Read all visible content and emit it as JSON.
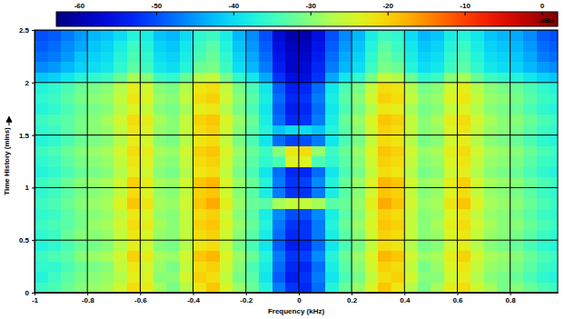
{
  "chart_data": {
    "type": "heatmap",
    "x_label": "Frequency (kHz)",
    "y_label": "Time History (mins)",
    "xlim": [
      -1,
      0.98
    ],
    "ylim": [
      0,
      2.5
    ],
    "xticks": [
      -1,
      -0.8,
      -0.6,
      -0.4,
      -0.2,
      0,
      0.2,
      0.4,
      0.6,
      0.8
    ],
    "yticks": [
      0,
      0.5,
      1,
      1.5,
      2,
      2.5
    ],
    "grid": true,
    "x": [
      -0.975,
      -0.925,
      -0.875,
      -0.825,
      -0.775,
      -0.725,
      -0.675,
      -0.625,
      -0.575,
      -0.525,
      -0.475,
      -0.425,
      -0.375,
      -0.325,
      -0.275,
      -0.225,
      -0.175,
      -0.125,
      -0.075,
      -0.025,
      0.025,
      0.075,
      0.125,
      0.175,
      0.225,
      0.275,
      0.325,
      0.375,
      0.425,
      0.475,
      0.525,
      0.575,
      0.625,
      0.675,
      0.725,
      0.775,
      0.825,
      0.875,
      0.925,
      0.975
    ],
    "y": [
      0.05,
      0.15,
      0.25,
      0.35,
      0.45,
      0.55,
      0.65,
      0.75,
      0.85,
      0.95,
      1.05,
      1.15,
      1.25,
      1.35,
      1.45,
      1.55,
      1.65,
      1.75,
      1.85,
      1.95,
      2.05,
      2.15,
      2.25,
      2.35,
      2.45
    ],
    "cells": [
      [
        -35,
        -34,
        -32,
        -30,
        -29,
        -28,
        -25,
        -21,
        -23,
        -28,
        -31,
        -27,
        -22,
        -19,
        -24,
        -29,
        -32,
        -37,
        -47,
        -52,
        -53,
        -48,
        -37,
        -32,
        -29,
        -24,
        -19,
        -22,
        -27,
        -31,
        -28,
        -23,
        -21,
        -25,
        -28,
        -31,
        -30,
        -32,
        -34,
        -35
      ],
      [
        -37,
        -35,
        -33,
        -31,
        -30,
        -29,
        -27,
        -23,
        -24,
        -30,
        -30,
        -25,
        -20,
        -21,
        -26,
        -31,
        -33,
        -39,
        -49,
        -54,
        -52,
        -47,
        -39,
        -34,
        -31,
        -26,
        -21,
        -20,
        -25,
        -30,
        -30,
        -25,
        -23,
        -27,
        -30,
        -31,
        -32,
        -34,
        -36,
        -37
      ],
      [
        -36,
        -36,
        -34,
        -32,
        -31,
        -30,
        -26,
        -22,
        -25,
        -29,
        -31,
        -26,
        -21,
        -20,
        -25,
        -30,
        -34,
        -38,
        -48,
        -53,
        -53,
        -48,
        -38,
        -33,
        -30,
        -25,
        -20,
        -21,
        -26,
        -31,
        -29,
        -24,
        -22,
        -26,
        -29,
        -30,
        -31,
        -33,
        -35,
        -36
      ],
      [
        -35,
        -34,
        -33,
        -30,
        -29,
        -28,
        -25,
        -20,
        -23,
        -28,
        -29,
        -25,
        -19,
        -18,
        -24,
        -29,
        -32,
        -37,
        -47,
        -52,
        -51,
        -46,
        -37,
        -32,
        -29,
        -24,
        -18,
        -19,
        -25,
        -29,
        -28,
        -23,
        -20,
        -25,
        -28,
        -29,
        -30,
        -32,
        -34,
        -35
      ],
      [
        -37,
        -36,
        -34,
        -32,
        -31,
        -30,
        -27,
        -23,
        -25,
        -30,
        -31,
        -27,
        -22,
        -21,
        -26,
        -31,
        -34,
        -39,
        -49,
        -54,
        -53,
        -48,
        -39,
        -34,
        -31,
        -26,
        -21,
        -22,
        -27,
        -31,
        -30,
        -25,
        -23,
        -27,
        -30,
        -31,
        -32,
        -34,
        -36,
        -37
      ],
      [
        -36,
        -35,
        -32,
        -30,
        -30,
        -29,
        -26,
        -22,
        -24,
        -29,
        -30,
        -26,
        -21,
        -20,
        -25,
        -30,
        -33,
        -38,
        -48,
        -53,
        -52,
        -47,
        -38,
        -33,
        -30,
        -25,
        -20,
        -21,
        -26,
        -30,
        -29,
        -24,
        -22,
        -26,
        -29,
        -30,
        -31,
        -33,
        -35,
        -36
      ],
      [
        -35,
        -34,
        -33,
        -31,
        -29,
        -28,
        -25,
        -21,
        -23,
        -28,
        -30,
        -26,
        -20,
        -19,
        -24,
        -29,
        -32,
        -37,
        -47,
        -52,
        -52,
        -47,
        -37,
        -32,
        -29,
        -24,
        -19,
        -20,
        -26,
        -30,
        -28,
        -23,
        -21,
        -25,
        -28,
        -30,
        -30,
        -32,
        -34,
        -35
      ],
      [
        -36,
        -35,
        -33,
        -31,
        -30,
        -29,
        -26,
        -22,
        -24,
        -29,
        -30,
        -26,
        -21,
        -20,
        -25,
        -30,
        -33,
        -38,
        -46,
        -50,
        -50,
        -46,
        -38,
        -33,
        -30,
        -25,
        -20,
        -21,
        -26,
        -30,
        -29,
        -24,
        -22,
        -26,
        -29,
        -30,
        -31,
        -33,
        -35,
        -36
      ],
      [
        -35,
        -34,
        -32,
        -30,
        -29,
        -28,
        -24,
        -19,
        -22,
        -28,
        -29,
        -25,
        -19,
        -17,
        -23,
        -29,
        -32,
        -33,
        -28,
        -26,
        -26,
        -28,
        -33,
        -32,
        -29,
        -23,
        -17,
        -19,
        -25,
        -29,
        -28,
        -22,
        -19,
        -24,
        -28,
        -29,
        -30,
        -32,
        -34,
        -35
      ],
      [
        -36,
        -35,
        -33,
        -31,
        -30,
        -29,
        -26,
        -21,
        -24,
        -29,
        -30,
        -26,
        -20,
        -19,
        -25,
        -30,
        -33,
        -38,
        -47,
        -52,
        -52,
        -47,
        -38,
        -33,
        -30,
        -25,
        -19,
        -20,
        -26,
        -30,
        -29,
        -24,
        -21,
        -26,
        -29,
        -30,
        -31,
        -33,
        -35,
        -36
      ],
      [
        -35,
        -34,
        -32,
        -30,
        -29,
        -28,
        -25,
        -20,
        -23,
        -28,
        -29,
        -25,
        -19,
        -18,
        -24,
        -29,
        -32,
        -37,
        -47,
        -52,
        -51,
        -46,
        -37,
        -32,
        -29,
        -24,
        -18,
        -19,
        -25,
        -29,
        -28,
        -23,
        -20,
        -25,
        -28,
        -29,
        -30,
        -32,
        -34,
        -35
      ],
      [
        -37,
        -36,
        -34,
        -32,
        -31,
        -30,
        -27,
        -23,
        -25,
        -30,
        -31,
        -27,
        -22,
        -21,
        -26,
        -31,
        -34,
        -39,
        -48,
        -53,
        -53,
        -48,
        -39,
        -34,
        -31,
        -26,
        -21,
        -22,
        -27,
        -31,
        -30,
        -25,
        -23,
        -27,
        -30,
        -31,
        -32,
        -34,
        -36,
        -37
      ],
      [
        -36,
        -35,
        -33,
        -31,
        -30,
        -29,
        -26,
        -22,
        -24,
        -29,
        -30,
        -26,
        -21,
        -20,
        -25,
        -30,
        -33,
        -36,
        -34,
        -24,
        -24,
        -34,
        -36,
        -33,
        -30,
        -25,
        -20,
        -21,
        -26,
        -30,
        -29,
        -24,
        -22,
        -26,
        -29,
        -30,
        -31,
        -33,
        -35,
        -36
      ],
      [
        -35,
        -34,
        -32,
        -30,
        -29,
        -28,
        -25,
        -21,
        -23,
        -28,
        -29,
        -25,
        -20,
        -19,
        -24,
        -29,
        -32,
        -35,
        -30,
        -22,
        -21,
        -29,
        -35,
        -32,
        -29,
        -24,
        -19,
        -20,
        -25,
        -29,
        -28,
        -23,
        -21,
        -25,
        -28,
        -29,
        -30,
        -32,
        -34,
        -35
      ],
      [
        -37,
        -36,
        -34,
        -32,
        -31,
        -30,
        -27,
        -23,
        -25,
        -30,
        -31,
        -27,
        -22,
        -21,
        -26,
        -31,
        -34,
        -39,
        -48,
        -51,
        -50,
        -47,
        -39,
        -34,
        -31,
        -26,
        -21,
        -22,
        -27,
        -31,
        -30,
        -25,
        -23,
        -27,
        -30,
        -31,
        -32,
        -34,
        -36,
        -37
      ],
      [
        -36,
        -35,
        -33,
        -31,
        -30,
        -29,
        -26,
        -22,
        -24,
        -29,
        -30,
        -26,
        -21,
        -20,
        -25,
        -30,
        -33,
        -37,
        -42,
        -40,
        -40,
        -42,
        -37,
        -33,
        -30,
        -25,
        -20,
        -21,
        -26,
        -30,
        -29,
        -24,
        -22,
        -26,
        -29,
        -30,
        -31,
        -33,
        -35,
        -36
      ],
      [
        -35,
        -34,
        -33,
        -31,
        -30,
        -28,
        -25,
        -21,
        -23,
        -28,
        -30,
        -26,
        -20,
        -19,
        -24,
        -29,
        -32,
        -38,
        -48,
        -53,
        -52,
        -47,
        -38,
        -32,
        -29,
        -24,
        -19,
        -20,
        -26,
        -30,
        -28,
        -23,
        -21,
        -25,
        -28,
        -30,
        -30,
        -32,
        -34,
        -35
      ],
      [
        -37,
        -36,
        -34,
        -32,
        -31,
        -30,
        -27,
        -24,
        -26,
        -30,
        -31,
        -28,
        -23,
        -22,
        -27,
        -31,
        -34,
        -39,
        -49,
        -54,
        -53,
        -48,
        -39,
        -34,
        -31,
        -27,
        -22,
        -23,
        -28,
        -31,
        -30,
        -26,
        -24,
        -27,
        -30,
        -31,
        -32,
        -34,
        -36,
        -37
      ],
      [
        -36,
        -35,
        -33,
        -31,
        -30,
        -29,
        -26,
        -22,
        -24,
        -29,
        -30,
        -26,
        -21,
        -20,
        -25,
        -30,
        -33,
        -38,
        -48,
        -53,
        -52,
        -47,
        -38,
        -33,
        -30,
        -25,
        -20,
        -21,
        -26,
        -30,
        -29,
        -24,
        -22,
        -26,
        -29,
        -30,
        -31,
        -33,
        -35,
        -36
      ],
      [
        -37,
        -36,
        -34,
        -32,
        -31,
        -30,
        -27,
        -23,
        -25,
        -30,
        -31,
        -27,
        -22,
        -21,
        -26,
        -31,
        -34,
        -39,
        -49,
        -54,
        -53,
        -48,
        -39,
        -34,
        -31,
        -26,
        -21,
        -22,
        -27,
        -31,
        -30,
        -25,
        -23,
        -27,
        -30,
        -31,
        -32,
        -34,
        -36,
        -37
      ],
      [
        -42,
        -41,
        -39,
        -37,
        -36,
        -35,
        -32,
        -28,
        -30,
        -35,
        -36,
        -32,
        -27,
        -26,
        -31,
        -36,
        -39,
        -44,
        -52,
        -56,
        -56,
        -52,
        -44,
        -39,
        -36,
        -31,
        -26,
        -27,
        -32,
        -36,
        -35,
        -30,
        -28,
        -32,
        -35,
        -36,
        -37,
        -39,
        -41,
        -42
      ],
      [
        -46,
        -45,
        -43,
        -41,
        -40,
        -39,
        -36,
        -33,
        -35,
        -39,
        -40,
        -37,
        -32,
        -31,
        -35,
        -40,
        -43,
        -47,
        -54,
        -58,
        -57,
        -53,
        -47,
        -43,
        -40,
        -35,
        -31,
        -32,
        -37,
        -40,
        -39,
        -35,
        -33,
        -36,
        -39,
        -40,
        -41,
        -43,
        -45,
        -46
      ],
      [
        -48,
        -47,
        -45,
        -42,
        -41,
        -40,
        -37,
        -34,
        -36,
        -40,
        -41,
        -38,
        -34,
        -32,
        -36,
        -41,
        -44,
        -48,
        -55,
        -58,
        -58,
        -54,
        -48,
        -44,
        -41,
        -36,
        -32,
        -34,
        -38,
        -41,
        -40,
        -36,
        -34,
        -37,
        -40,
        -41,
        -42,
        -44,
        -47,
        -48
      ],
      [
        -49,
        -48,
        -46,
        -44,
        -42,
        -41,
        -38,
        -35,
        -37,
        -41,
        -42,
        -39,
        -35,
        -33,
        -37,
        -42,
        -45,
        -49,
        -56,
        -59,
        -59,
        -55,
        -49,
        -45,
        -42,
        -37,
        -33,
        -35,
        -39,
        -42,
        -41,
        -37,
        -35,
        -38,
        -41,
        -42,
        -43,
        -45,
        -48,
        -49
      ],
      [
        -50,
        -49,
        -47,
        -45,
        -43,
        -42,
        -40,
        -37,
        -38,
        -42,
        -43,
        -40,
        -36,
        -35,
        -38,
        -43,
        -46,
        -50,
        -57,
        -60,
        -60,
        -56,
        -50,
        -46,
        -43,
        -38,
        -35,
        -36,
        -40,
        -43,
        -42,
        -38,
        -37,
        -39,
        -42,
        -43,
        -44,
        -46,
        -49,
        -50
      ]
    ],
    "colorbar_range": [
      -63,
      2
    ],
    "colorbar_ticks": [
      -60,
      -50,
      -40,
      -30,
      -20,
      -10,
      0
    ],
    "colorbar_label": "dBn"
  }
}
